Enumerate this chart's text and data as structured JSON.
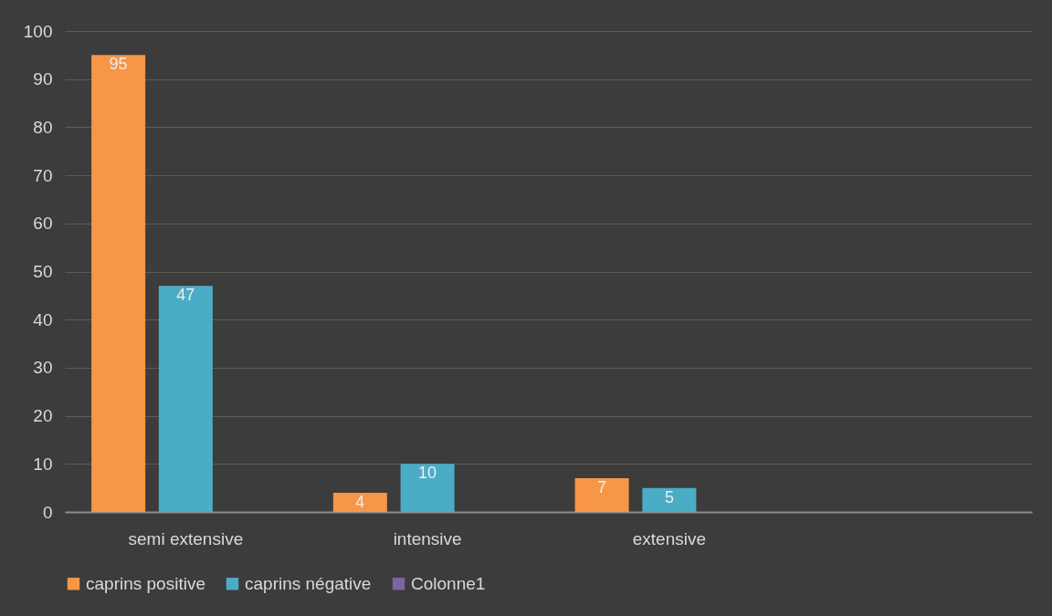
{
  "chart_data": {
    "type": "bar",
    "categories": [
      "semi extensive",
      "intensive",
      "extensive",
      null
    ],
    "series": [
      {
        "name": "caprins positive",
        "color": "#f79646",
        "values": [
          95,
          4,
          7,
          null
        ]
      },
      {
        "name": "caprins négative",
        "color": "#4bacc6",
        "values": [
          47,
          10,
          5,
          null
        ]
      },
      {
        "name": "Colonne1",
        "color": "#8064a2",
        "values": [
          null,
          null,
          null,
          null
        ]
      }
    ],
    "ylim": [
      0,
      100
    ],
    "yticks": [
      0,
      10,
      20,
      30,
      40,
      50,
      60,
      70,
      80,
      90,
      100
    ],
    "grid": "y",
    "legend": "bottom",
    "data_labels": true
  }
}
